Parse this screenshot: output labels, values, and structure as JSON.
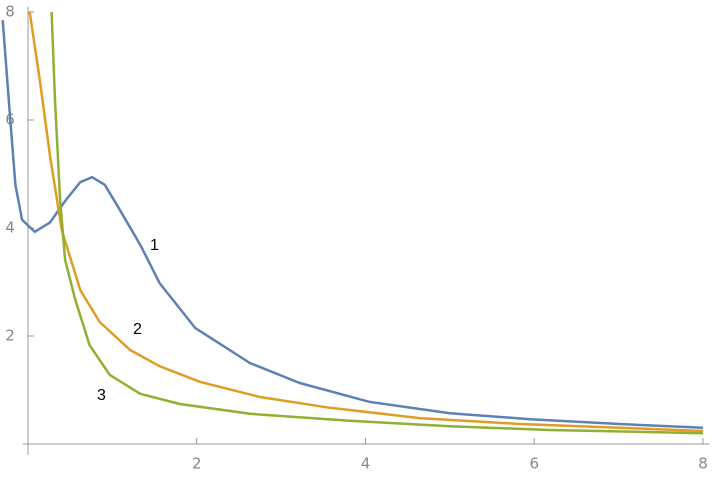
{
  "chart_data": {
    "type": "line",
    "xlim": [
      -0.3,
      8.1
    ],
    "ylim": [
      -0.2,
      8.1
    ],
    "xticks": [
      2,
      4,
      6,
      8
    ],
    "yticks": [
      2,
      4,
      6,
      8
    ],
    "series": [
      {
        "name": "1",
        "color": "#5e81b5",
        "x": [
          -0.3,
          -0.21,
          -0.15,
          -0.07,
          0.08,
          0.26,
          0.44,
          0.62,
          0.76,
          0.91,
          1.09,
          1.33,
          1.56,
          1.98,
          2.63,
          3.22,
          4.05,
          5.0,
          5.95,
          7.01,
          8.0
        ],
        "values": [
          7.85,
          6.0,
          4.8,
          4.15,
          3.93,
          4.1,
          4.5,
          4.85,
          4.94,
          4.8,
          4.33,
          3.69,
          2.98,
          2.15,
          1.5,
          1.13,
          0.78,
          0.57,
          0.46,
          0.37,
          0.3
        ]
      },
      {
        "name": "2",
        "color": "#e19c24",
        "x": [
          0.02,
          0.14,
          0.26,
          0.4,
          0.62,
          0.85,
          1.21,
          1.56,
          2.04,
          2.75,
          3.58,
          4.64,
          5.83,
          7.01,
          8.0
        ],
        "values": [
          8.0,
          6.74,
          5.35,
          3.96,
          2.85,
          2.26,
          1.74,
          1.44,
          1.15,
          0.87,
          0.67,
          0.48,
          0.37,
          0.3,
          0.24
        ]
      },
      {
        "name": "3",
        "color": "#8fb032",
        "x": [
          0.28,
          0.32,
          0.38,
          0.44,
          0.56,
          0.73,
          0.97,
          1.33,
          1.8,
          2.63,
          3.81,
          5.0,
          6.18,
          8.0
        ],
        "values": [
          8.0,
          6.37,
          4.52,
          3.41,
          2.67,
          1.83,
          1.28,
          0.93,
          0.74,
          0.56,
          0.43,
          0.33,
          0.26,
          0.2
        ]
      }
    ]
  }
}
